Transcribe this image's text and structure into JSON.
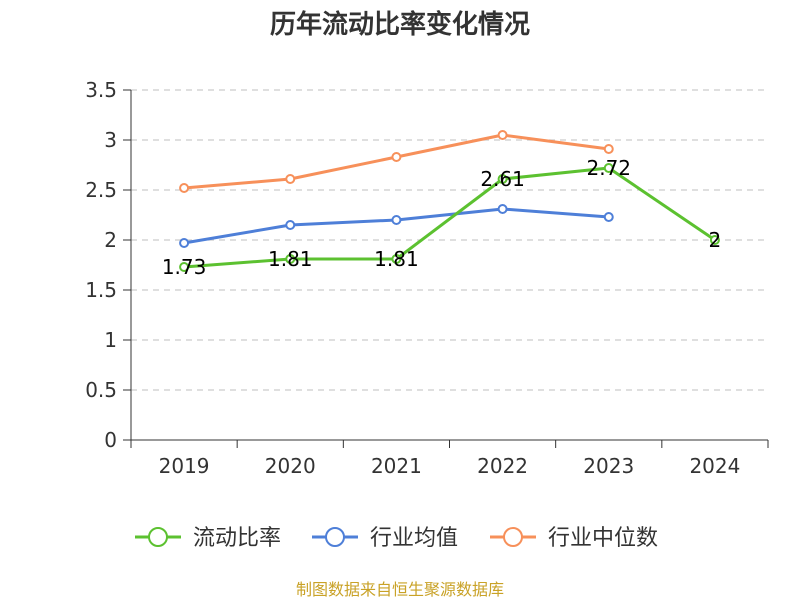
{
  "chart_data": {
    "type": "line",
    "title": "历年流动比率变化情况",
    "categories": [
      "2019",
      "2020",
      "2021",
      "2022",
      "2023",
      "2024"
    ],
    "yticks": [
      "0",
      "0.5",
      "1",
      "1.5",
      "2",
      "2.5",
      "3",
      "3.5"
    ],
    "ylim": [
      0,
      3.5
    ],
    "grid": true,
    "legend_position": "bottom",
    "series": [
      {
        "name": "流动比率",
        "color": "#5cc130",
        "values": [
          1.73,
          1.81,
          1.81,
          2.61,
          2.72,
          2
        ],
        "labels": [
          "1.73",
          "1.81",
          "1.81",
          "2.61",
          "2.72",
          "2"
        ]
      },
      {
        "name": "行业均值",
        "color": "#4e7fd8",
        "values": [
          1.97,
          2.15,
          2.2,
          2.31,
          2.23,
          null
        ]
      },
      {
        "name": "行业中位数",
        "color": "#f7905a",
        "values": [
          2.52,
          2.61,
          2.83,
          3.05,
          2.91,
          null
        ]
      }
    ],
    "source": "制图数据来自恒生聚源数据库"
  }
}
